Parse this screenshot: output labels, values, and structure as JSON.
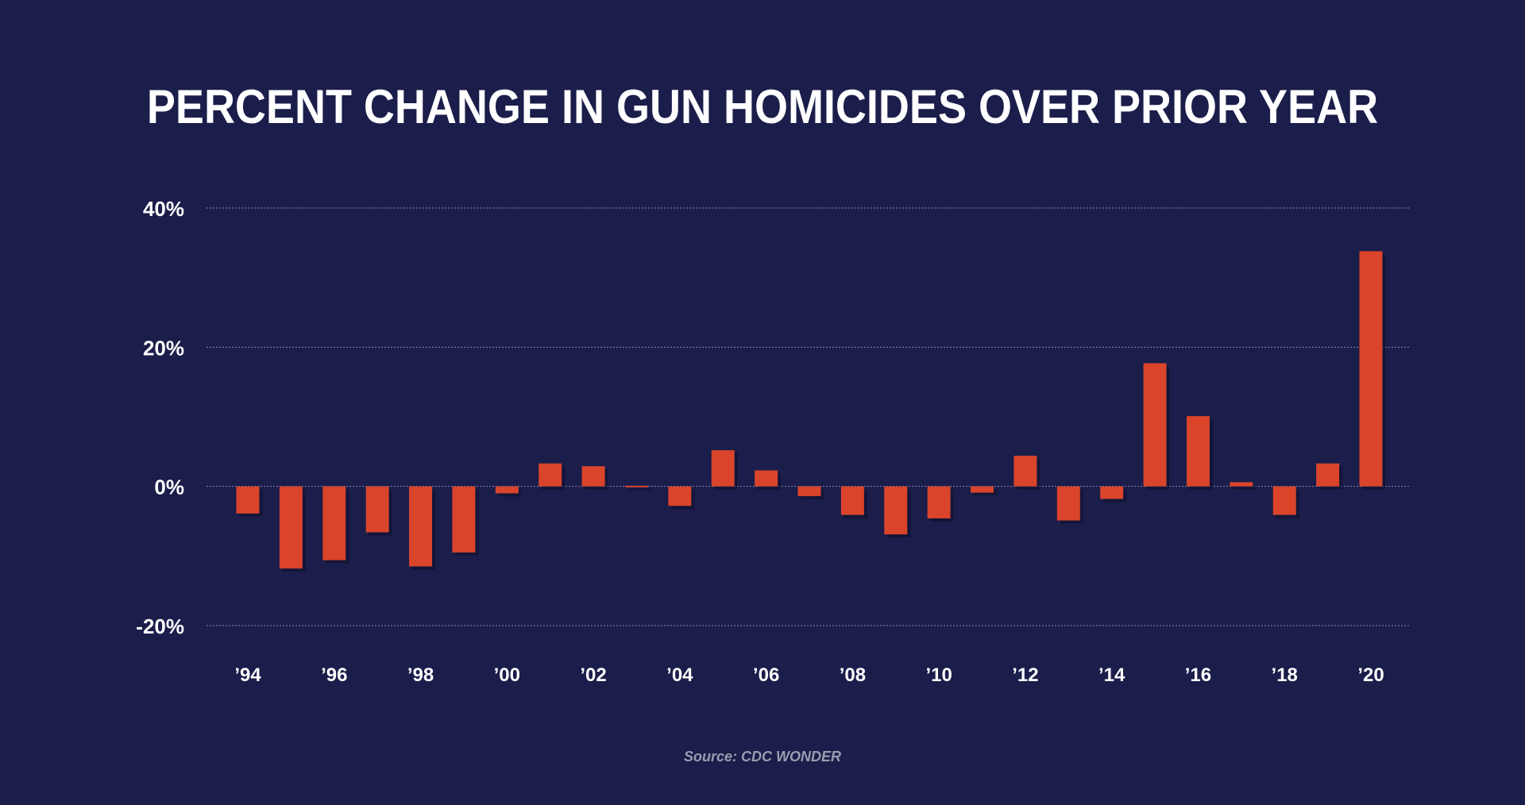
{
  "chart_data": {
    "type": "bar",
    "title": "PERCENT CHANGE IN GUN HOMICIDES OVER PRIOR YEAR",
    "source": "Source: CDC WONDER",
    "categories": [
      "1994",
      "1995",
      "1996",
      "1997",
      "1998",
      "1999",
      "2000",
      "2001",
      "2002",
      "2003",
      "2004",
      "2005",
      "2006",
      "2007",
      "2008",
      "2009",
      "2010",
      "2011",
      "2012",
      "2013",
      "2014",
      "2015",
      "2016",
      "2017",
      "2018",
      "2019",
      "2020"
    ],
    "values": [
      -3.9,
      -11.8,
      -10.6,
      -6.6,
      -11.5,
      -9.5,
      -1.0,
      3.3,
      2.9,
      0.1,
      -2.8,
      5.2,
      2.3,
      -1.4,
      -4.1,
      -6.9,
      -4.6,
      -0.9,
      4.4,
      -4.9,
      -1.8,
      17.7,
      10.1,
      0.6,
      -4.1,
      3.3,
      33.8
    ],
    "x_tick_labels": [
      "’94",
      "’96",
      "’98",
      "’00",
      "’02",
      "’04",
      "’06",
      "’08",
      "’10",
      "’12",
      "’14",
      "’16",
      "’18",
      "’20"
    ],
    "x_tick_indices": [
      0,
      2,
      4,
      6,
      8,
      10,
      12,
      14,
      16,
      18,
      20,
      22,
      24,
      26
    ],
    "y_ticks": [
      40,
      20,
      0,
      -20
    ],
    "y_tick_labels": [
      "40%",
      "20%",
      "0%",
      "-20%"
    ],
    "ylim": [
      -20,
      40
    ],
    "xlabel": "",
    "ylabel": "",
    "grid": true,
    "colors": {
      "background": "#1b1d4a",
      "bar": "#d9442b",
      "bar_shadow": "#0d0e2a",
      "grid": "#8a8cb5",
      "text": "#ffffff",
      "source_text": "#9a9cb0"
    }
  }
}
